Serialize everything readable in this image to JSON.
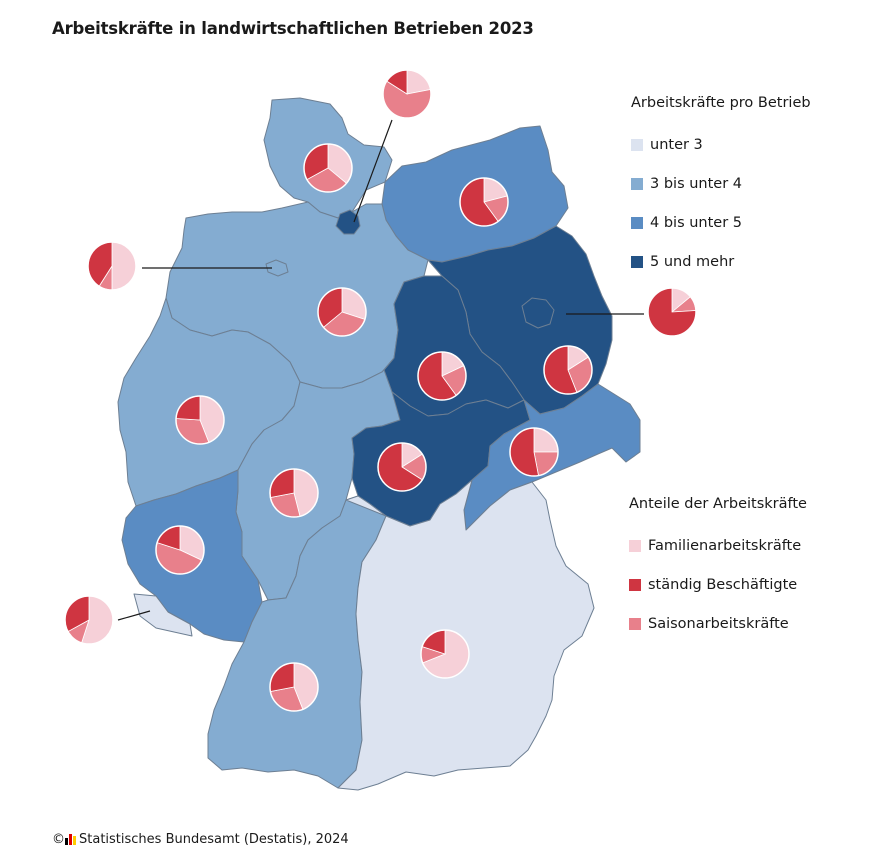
{
  "title": "Arbeitskräfte in landwirtschaftlichen Betrieben 2023",
  "legend_classes": {
    "heading": "Arbeitskräfte pro Betrieb",
    "items": [
      {
        "label": "unter 3",
        "color": "#dce3f0"
      },
      {
        "label": "3 bis unter 4",
        "color": "#84acd1"
      },
      {
        "label": "4 bis unter 5",
        "color": "#5a8cc3"
      },
      {
        "label": "5 und mehr",
        "color": "#235285"
      }
    ]
  },
  "legend_shares": {
    "heading": "Anteile der Arbeitskräfte",
    "items": [
      {
        "label": "Familienarbeitskräfte",
        "color": "#f6d0d8"
      },
      {
        "label": "ständig Beschäftigte",
        "color": "#cf3541"
      },
      {
        "label": "Saisonarbeitskräfte",
        "color": "#e8808b"
      }
    ]
  },
  "footer": {
    "copyright": "©",
    "source": "Statistisches Bundesamt (Destatis), 2024",
    "logo_colors": [
      "#000000",
      "#dd0000",
      "#ffcc00"
    ]
  },
  "states": [
    {
      "name": "Schleswig-Holstein",
      "class": 1,
      "shares": [
        0.36,
        0.33,
        0.31
      ]
    },
    {
      "name": "Hamburg",
      "class": 3,
      "shares": [
        0.22,
        0.16,
        0.62
      ]
    },
    {
      "name": "Mecklenburg-Vorpommern",
      "class": 2,
      "shares": [
        0.21,
        0.6,
        0.19
      ]
    },
    {
      "name": "Niedersachsen",
      "class": 1,
      "shares": [
        0.3,
        0.36,
        0.34
      ]
    },
    {
      "name": "Bremen",
      "class": 1,
      "shares": [
        0.5,
        0.41,
        0.09
      ]
    },
    {
      "name": "Berlin",
      "class": 3,
      "shares": [
        0.14,
        0.76,
        0.1
      ]
    },
    {
      "name": "Brandenburg",
      "class": 3,
      "shares": [
        0.16,
        0.56,
        0.28
      ]
    },
    {
      "name": "Sachsen-Anhalt",
      "class": 3,
      "shares": [
        0.18,
        0.6,
        0.22
      ]
    },
    {
      "name": "Nordrhein-Westfalen",
      "class": 1,
      "shares": [
        0.44,
        0.24,
        0.32
      ]
    },
    {
      "name": "Sachsen",
      "class": 2,
      "shares": [
        0.25,
        0.53,
        0.22
      ]
    },
    {
      "name": "Thüringen",
      "class": 3,
      "shares": [
        0.16,
        0.66,
        0.18
      ]
    },
    {
      "name": "Hessen",
      "class": 1,
      "shares": [
        0.46,
        0.28,
        0.26
      ]
    },
    {
      "name": "Rheinland-Pfalz",
      "class": 2,
      "shares": [
        0.32,
        0.2,
        0.48
      ]
    },
    {
      "name": "Saarland",
      "class": 0,
      "shares": [
        0.55,
        0.33,
        0.12
      ]
    },
    {
      "name": "Bayern",
      "class": 0,
      "shares": [
        0.69,
        0.2,
        0.11
      ]
    },
    {
      "name": "Baden-Württemberg",
      "class": 1,
      "shares": [
        0.44,
        0.28,
        0.28
      ]
    }
  ]
}
